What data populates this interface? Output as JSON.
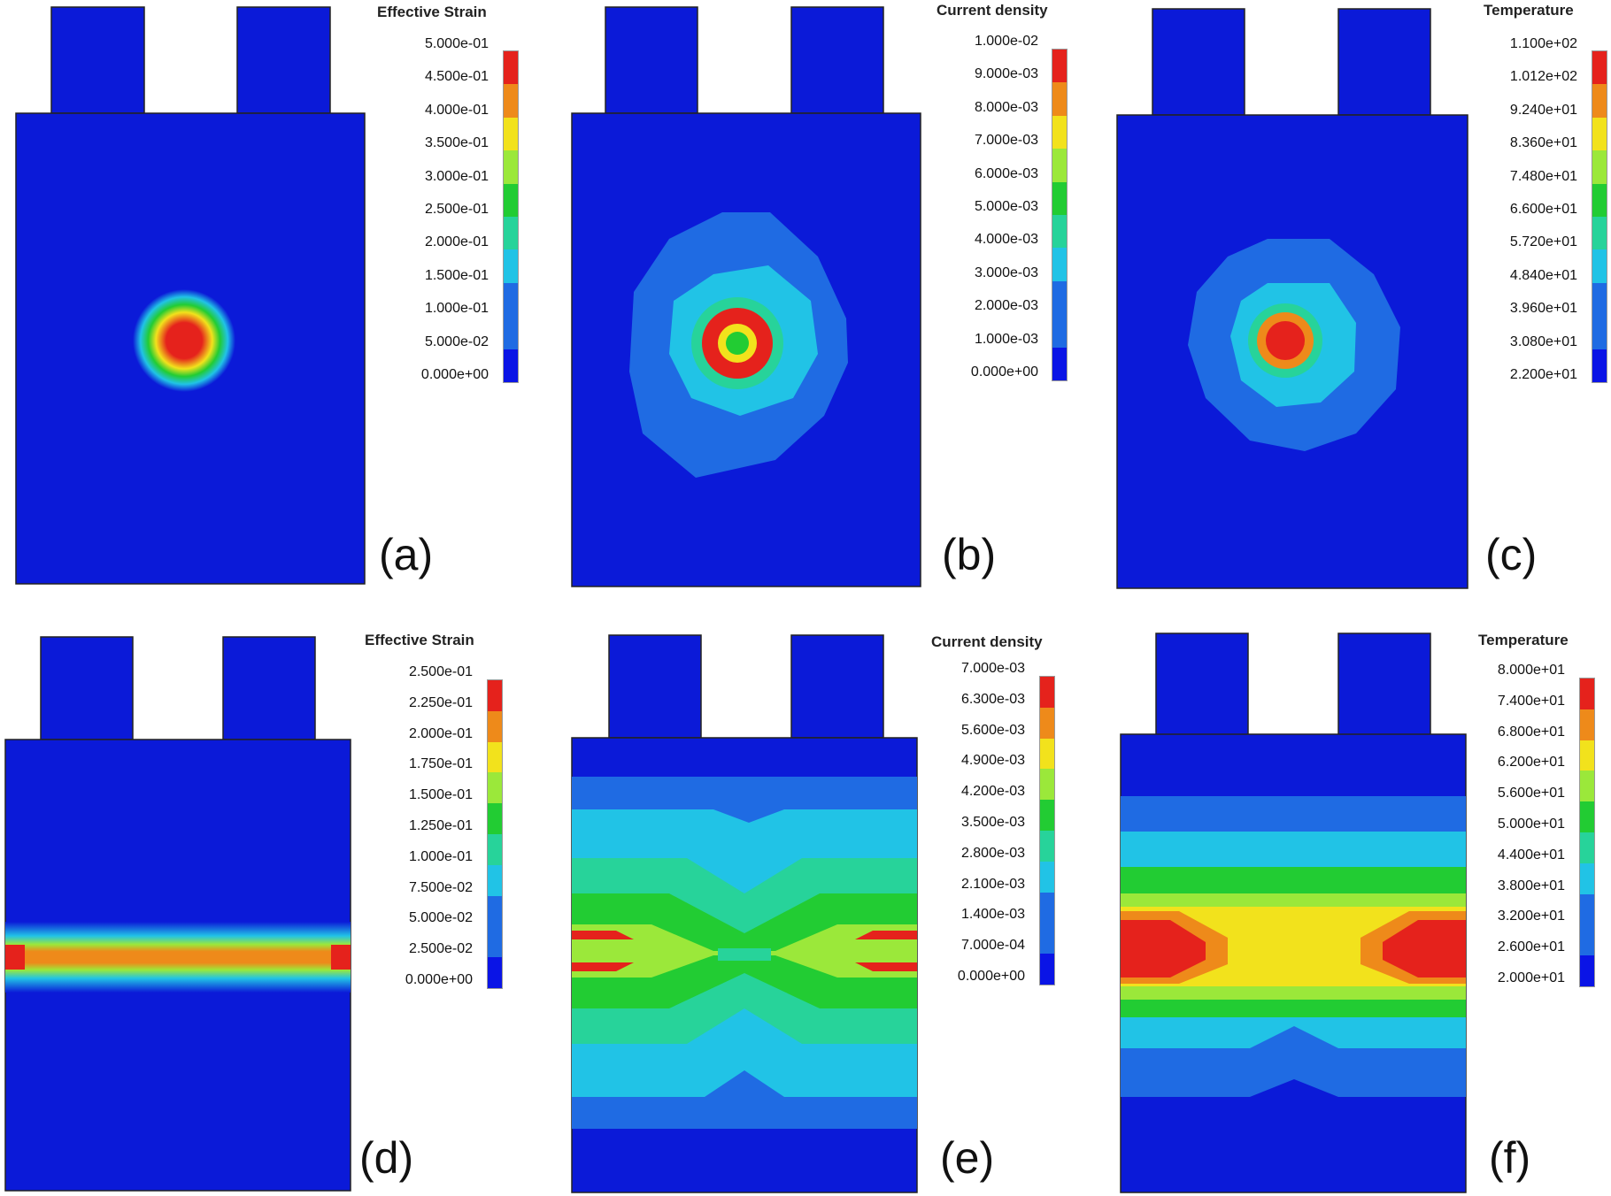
{
  "colors": {
    "scale": [
      "#0a14e6",
      "#1f6be3",
      "#21c3e6",
      "#27d39a",
      "#22cc33",
      "#9be83a",
      "#f2e21c",
      "#ee8a1a",
      "#e5221c"
    ],
    "background": "#0b1ad8"
  },
  "panels": [
    {
      "id": "a",
      "label": "(a)",
      "legend_title": "Effective Strain",
      "ticks": [
        "5.000e-01",
        "4.500e-01",
        "4.000e-01",
        "3.500e-01",
        "3.000e-01",
        "2.500e-01",
        "2.000e-01",
        "1.500e-01",
        "1.000e-01",
        "5.000e-02",
        "0.000e+00"
      ],
      "field": "hotspot-small"
    },
    {
      "id": "b",
      "label": "(b)",
      "legend_title": "Current density",
      "ticks": [
        "1.000e-02",
        "9.000e-03",
        "8.000e-03",
        "7.000e-03",
        "6.000e-03",
        "5.000e-03",
        "4.000e-03",
        "3.000e-03",
        "2.000e-03",
        "1.000e-03",
        "0.000e+00"
      ],
      "field": "hotspot-ring"
    },
    {
      "id": "c",
      "label": "(c)",
      "legend_title": "Temperature",
      "ticks": [
        "1.100e+02",
        "1.012e+02",
        "9.240e+01",
        "8.360e+01",
        "7.480e+01",
        "6.600e+01",
        "5.720e+01",
        "4.840e+01",
        "3.960e+01",
        "3.080e+01",
        "2.200e+01"
      ],
      "field": "hotspot-thermal"
    },
    {
      "id": "d",
      "label": "(d)",
      "legend_title": "Effective Strain",
      "ticks": [
        "2.500e-01",
        "2.250e-01",
        "2.000e-01",
        "1.750e-01",
        "1.500e-01",
        "1.250e-01",
        "1.000e-01",
        "7.500e-02",
        "5.000e-02",
        "2.500e-02",
        "0.000e+00"
      ],
      "field": "band-strain"
    },
    {
      "id": "e",
      "label": "(e)",
      "legend_title": "Current density",
      "ticks": [
        "7.000e-03",
        "6.300e-03",
        "5.600e-03",
        "4.900e-03",
        "4.200e-03",
        "3.500e-03",
        "2.800e-03",
        "2.100e-03",
        "1.400e-03",
        "7.000e-04",
        "0.000e+00"
      ],
      "field": "band-current"
    },
    {
      "id": "f",
      "label": "(f)",
      "legend_title": "Temperature",
      "ticks": [
        "8.000e+01",
        "7.400e+01",
        "6.800e+01",
        "6.200e+01",
        "5.600e+01",
        "5.000e+01",
        "4.400e+01",
        "3.800e+01",
        "3.200e+01",
        "2.600e+01",
        "2.000e+01"
      ],
      "field": "band-thermal"
    }
  ]
}
